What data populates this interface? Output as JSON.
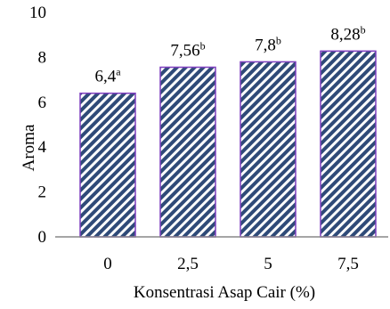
{
  "chart_data": {
    "type": "bar",
    "categories": [
      "0",
      "2,5",
      "5",
      "7,5"
    ],
    "values": [
      6.4,
      7.56,
      7.8,
      8.28
    ],
    "data_labels": [
      {
        "value": "6,4",
        "sup": "a"
      },
      {
        "value": "7,56",
        "sup": "b"
      },
      {
        "value": "7,8",
        "sup": "b"
      },
      {
        "value": "8,28",
        "sup": "b"
      }
    ],
    "xlabel": "Konsentrasi Asap Cair (%)",
    "ylabel": "Aroma",
    "ylim": [
      0,
      10
    ],
    "yticks": [
      "0",
      "2",
      "4",
      "6",
      "8",
      "10"
    ],
    "ytick_values": [
      0,
      2,
      4,
      6,
      8,
      10
    ],
    "grid": false,
    "legend": "none",
    "colors": {
      "bar_fill": "#2f4a78",
      "bar_hatch": "#ffffff",
      "bar_border": "#7f3fbf",
      "axis": "#888888"
    }
  }
}
